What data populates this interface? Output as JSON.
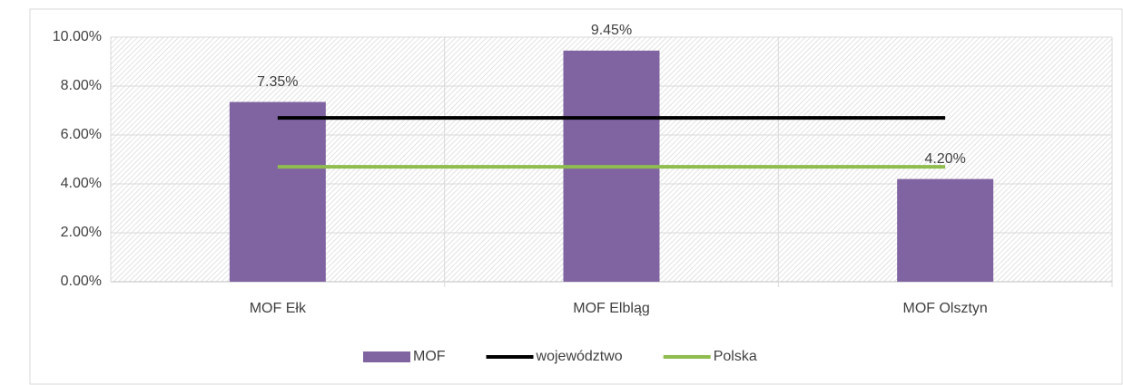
{
  "chart_data": {
    "type": "bar",
    "categories": [
      "MOF Ełk",
      "MOF Elbląg",
      "MOF Olsztyn"
    ],
    "series": [
      {
        "name": "MOF",
        "type": "bar",
        "color": "#8064a2",
        "values": [
          7.35,
          9.45,
          4.2
        ],
        "value_labels": [
          "7.35%",
          "9.45%",
          "4.20%"
        ]
      },
      {
        "name": "województwo",
        "type": "line",
        "color": "#000000",
        "values": [
          6.7,
          6.7,
          6.7
        ]
      },
      {
        "name": "Polska",
        "type": "line",
        "color": "#8fbc4f",
        "values": [
          4.7,
          4.7,
          4.7
        ]
      }
    ],
    "ylim": [
      0,
      10
    ],
    "yticks": [
      {
        "value": 0,
        "label": "0.00%"
      },
      {
        "value": 2,
        "label": "2.00%"
      },
      {
        "value": 4,
        "label": "4.00%"
      },
      {
        "value": 6,
        "label": "6.00%"
      },
      {
        "value": 8,
        "label": "8.00%"
      },
      {
        "value": 10,
        "label": "10.00%"
      }
    ],
    "grid": true,
    "legend": "bottom"
  }
}
